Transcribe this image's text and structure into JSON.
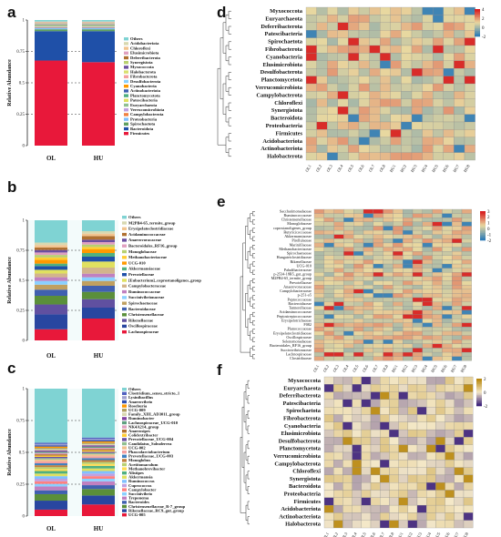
{
  "panels": {
    "a": {
      "label": "a",
      "ylabel": "Relative Abundance",
      "yticks": [
        "0",
        "0.25",
        "0.5",
        "0.75",
        "1"
      ],
      "groups": [
        "OL",
        "HU"
      ],
      "legend": [
        "Others",
        "Acidobacteriota",
        "Chloroflexi",
        "Elusimicrobiota",
        "Deferribacterota",
        "Synergistota",
        "Myxococcota",
        "Halobacterota",
        "Fibrobacterota",
        "Desulfobacterota",
        "Cyanobacteria",
        "Actinobacteriota",
        "Planctomycetota",
        "Patescibacteria",
        "Euryarchaeota",
        "Verrucomicrobiota",
        "Campylobacterota",
        "Proteobacteria",
        "Spirochaetota",
        "Bacteroidota",
        "Firmicutes"
      ],
      "colors": [
        "#7fd3d3",
        "#d8d8b0",
        "#f2c48f",
        "#e0a0c0",
        "#b07030",
        "#b8d070",
        "#6b4fa0",
        "#d8e070",
        "#f4a0a0",
        "#8ad0ff",
        "#ff9900",
        "#4060b0",
        "#50b080",
        "#e0e060",
        "#90c090",
        "#c0a0e0",
        "#f08040",
        "#80c0ff",
        "#60a060",
        "#1f50a8",
        "#e8183a"
      ],
      "values": {
        "OL": [
          0.012,
          0.003,
          0.003,
          0.002,
          0.002,
          0.002,
          0.002,
          0.002,
          0.003,
          0.003,
          0.003,
          0.003,
          0.004,
          0.004,
          0.004,
          0.004,
          0.005,
          0.012,
          0.015,
          0.232,
          0.672
        ],
        "HU": [
          0.012,
          0.003,
          0.003,
          0.002,
          0.002,
          0.002,
          0.002,
          0.002,
          0.003,
          0.003,
          0.003,
          0.003,
          0.004,
          0.004,
          0.004,
          0.004,
          0.005,
          0.012,
          0.015,
          0.245,
          0.659
        ]
      }
    },
    "b": {
      "label": "b",
      "ylabel": "Relative Abundance",
      "yticks": [
        "0",
        "0.25",
        "0.5",
        "0.75",
        "1"
      ],
      "groups": [
        "OL",
        "HU"
      ],
      "legend": [
        "Others",
        "M2PB4-65_termite_group",
        "Erysipelatoclostridiaceae",
        "Acidaminococcaceae",
        "Anaerovoracaceae",
        "Bacteroidales_RF16_group",
        "Monoglobaceae",
        "Methanobacteriaceae",
        "UCG-010",
        "Akkermansiaceae",
        "Prevotellaceae",
        "[Eubacterium]_coprostanoligenes_group",
        "Campylobacteraceae",
        "Ruminococcaceae",
        "Succinivibrionaceae",
        "Spirochaetaceae",
        "Bacteroidaceae",
        "Christensenellaceae",
        "Rikenellaceae",
        "Oscillospiraceae",
        "Lachnospiraceae"
      ],
      "colors": [
        "#7fd3d3",
        "#d8d8b0",
        "#f2c48f",
        "#b07030",
        "#6b4fa0",
        "#e0a0c0",
        "#b8d070",
        "#ffcc33",
        "#ff9900",
        "#50b080",
        "#1f50a8",
        "#e0e060",
        "#d2b48c",
        "#c080c0",
        "#8ad0ff",
        "#c0a060",
        "#4060b0",
        "#5a8f3a",
        "#6050a0",
        "#2846a0",
        "#e8183a"
      ],
      "values": {
        "OL": [
          0.18,
          0.02,
          0.02,
          0.02,
          0.02,
          0.02,
          0.02,
          0.02,
          0.03,
          0.02,
          0.03,
          0.03,
          0.03,
          0.03,
          0.03,
          0.04,
          0.05,
          0.07,
          0.08,
          0.12,
          0.09
        ],
        "HU": [
          0.09,
          0.02,
          0.02,
          0.03,
          0.02,
          0.02,
          0.02,
          0.02,
          0.03,
          0.03,
          0.04,
          0.05,
          0.05,
          0.03,
          0.03,
          0.04,
          0.05,
          0.06,
          0.07,
          0.09,
          0.18
        ]
      }
    },
    "c": {
      "label": "c",
      "ylabel": "Relative Abundance",
      "yticks": [
        "0",
        "0.25",
        "0.5",
        "0.75",
        "1"
      ],
      "groups": [
        "OL",
        "HU"
      ],
      "legend": [
        "Others",
        "Clostridium_sensu_stricto_1",
        "Lysinibacillus",
        "Anaerovibrio",
        "Roseburia",
        "UCG-009",
        "Family_XIII_AD3011_group",
        "Ruminobacter",
        "Lachnospiraceae_UCG-010",
        "NK4A214_group",
        "Anaerosipes",
        "Colidextribacter",
        "Prevotellaceae_UCG-004",
        "Candidatus_Soleaferrea",
        "UCG-002",
        "Phascolarctobacterium",
        "Prevotellaceae_UCG-003",
        "Monoglobus",
        "Acetitomaculum",
        "Methanobrevibacter",
        "Alistipes",
        "Akkermansia",
        "Ruminococcus",
        "Cuprococcus",
        "Campylobacter",
        "Succinivibrio",
        "Treponema",
        "Bacteroides",
        "Christensenellaceae_R-7_group",
        "Rikenellaceae_RC9_gut_group",
        "UCG-005"
      ],
      "colors": [
        "#7fd3d3",
        "#5060c0",
        "#a0a0d0",
        "#3050b0",
        "#ff9900",
        "#b0a060",
        "#d8d8b0",
        "#8040a0",
        "#60a080",
        "#e0a0c0",
        "#b07030",
        "#ffcc33",
        "#6b4fa0",
        "#90c090",
        "#f0c090",
        "#f4a0a0",
        "#4080c0",
        "#c08040",
        "#b8d070",
        "#ffdd55",
        "#50b080",
        "#e0e060",
        "#80c0ff",
        "#c0a0e0",
        "#ff8080",
        "#8ad0ff",
        "#c080c0",
        "#4060b0",
        "#5a8f3a",
        "#2846a0",
        "#e8183a"
      ],
      "values": {
        "OL": [
          0.42,
          0.01,
          0.01,
          0.01,
          0.01,
          0.01,
          0.01,
          0.01,
          0.01,
          0.01,
          0.01,
          0.01,
          0.01,
          0.01,
          0.015,
          0.015,
          0.015,
          0.015,
          0.015,
          0.015,
          0.02,
          0.02,
          0.02,
          0.02,
          0.02,
          0.02,
          0.03,
          0.03,
          0.05,
          0.07,
          0.05
        ],
        "HU": [
          0.38,
          0.01,
          0.01,
          0.01,
          0.01,
          0.01,
          0.01,
          0.01,
          0.01,
          0.01,
          0.01,
          0.01,
          0.01,
          0.01,
          0.015,
          0.015,
          0.015,
          0.015,
          0.015,
          0.015,
          0.02,
          0.02,
          0.02,
          0.02,
          0.02,
          0.02,
          0.03,
          0.03,
          0.05,
          0.07,
          0.09
        ]
      }
    },
    "d": {
      "label": "d",
      "rows": [
        "Myxococcota",
        "Euryarchaeota",
        "Deferribacterota",
        "Patescibacteria",
        "Spirochaetota",
        "Fibrobacterota",
        "Cyanobacteria",
        "Elusimicrobiota",
        "Desulfobacterota",
        "Planctomycetota",
        "Verrucomicrobiota",
        "Campylobacterota",
        "Chloroflexi",
        "Synergistota",
        "Bacteroidota",
        "Proteobacteria",
        "Firmicutes",
        "Acidobacteriota",
        "Actinobacteriota",
        "Halobacterota"
      ],
      "cols": [
        "OL1",
        "OL2",
        "OL3",
        "OL4",
        "OL5",
        "OL6",
        "OL7",
        "OL8",
        "HU1",
        "HU2",
        "HU3",
        "HU4",
        "HU5",
        "HU6",
        "HU7",
        "HU8"
      ],
      "colorbar_ticks": [
        "4",
        "2",
        "0",
        "-2"
      ],
      "colors": {
        "high": "#d7191c",
        "mid": "#e8d8a0",
        "low": "#2c7bb6"
      }
    },
    "e": {
      "label": "e",
      "rows": [
        "Saccharimonadaceae",
        "Ruminococcaceae",
        "Christensenellaceae",
        "Monoglobaceae",
        "coprostanoligenes_group",
        "Butyricicoccaceae",
        "Akkermansiaceae",
        "Pirellulaceae",
        "Marinifilaceae",
        "Methanobacteriaceae",
        "Spirochaetaceae",
        "Hungateiclostridiaceae",
        "Rikenellaceae",
        "UCG-010",
        "Paludibacteraceae",
        "p-2534-18B5_gut_group",
        "M2PB4-65_termite_group",
        "Prevotellaceae",
        "Anaerovoracaceae",
        "Campylobacteraceae",
        "p-251-o5",
        "Peptococcaceae",
        "Bacteroidaceae",
        "Tannerellaceae",
        "Acidaminococcaceae",
        "Peptostreptococcaceae",
        "Erysipelotrichaceae",
        "F082",
        "Planococcaceae",
        "Erysipelatoclostridiaceae",
        "Oscillospiraceae",
        "Selenomonadaceae",
        "Bacteroidales_RF16_group",
        "Succinivibrionaceae",
        "Lachnospiraceae",
        "Clostridiaceae"
      ],
      "cols": [
        "OL1",
        "OL2",
        "OL3",
        "OL4",
        "OL5",
        "OL6",
        "OL7",
        "OL8",
        "HU1",
        "HU2",
        "HU3",
        "HU4",
        "HU5",
        "HU6",
        "HU7",
        "HU8"
      ],
      "colorbar_ticks": [
        "3",
        "2",
        "1",
        "0",
        "-1",
        "-2"
      ],
      "colors": {
        "high": "#d7191c",
        "mid": "#e8d8a0",
        "low": "#2c7bb6"
      }
    },
    "f": {
      "label": "f",
      "rows": [
        "Myxococcota",
        "Euryarchaeota",
        "Deferribacterota",
        "Patescibacteria",
        "Spirochaetota",
        "Fibrobacterota",
        "Cyanobacteria",
        "Elusimicrobiota",
        "Desulfobacterota",
        "Planctomycetota",
        "Verrucomicrobiota",
        "Campylobacterota",
        "Chloroflexi",
        "Synergistota",
        "Bacteroidota",
        "Proteobacteria",
        "Firmicutes",
        "Acidobacteriota",
        "Actinobacteriota",
        "Halobacterota"
      ],
      "cols": [
        "OL1",
        "OL2",
        "OL3",
        "OL4",
        "OL5",
        "OL6",
        "OL7",
        "OL8",
        "HU1",
        "HU2",
        "HU3",
        "HU4",
        "HU5",
        "HU6",
        "HU7",
        "HU8"
      ],
      "colorbar_ticks": [
        "2",
        "0",
        "-2"
      ],
      "colors": {
        "high": "#b8860b",
        "mid": "#f4e8c8",
        "low": "#3a1f7a"
      }
    }
  },
  "chart_data": [
    {
      "type": "bar",
      "subtype": "stacked",
      "title": "",
      "ylabel": "Relative Abundance",
      "categories": [
        "OL",
        "HU"
      ],
      "ylim": [
        0,
        1
      ]
    },
    {
      "type": "bar",
      "subtype": "stacked",
      "title": "",
      "ylabel": "Relative Abundance",
      "categories": [
        "OL",
        "HU"
      ],
      "ylim": [
        0,
        1
      ]
    },
    {
      "type": "bar",
      "subtype": "stacked",
      "title": "",
      "ylabel": "Relative Abundance",
      "categories": [
        "OL",
        "HU"
      ],
      "ylim": [
        0,
        1
      ]
    },
    {
      "type": "heatmap",
      "title": ""
    },
    {
      "type": "heatmap",
      "title": ""
    },
    {
      "type": "heatmap",
      "title": ""
    }
  ]
}
